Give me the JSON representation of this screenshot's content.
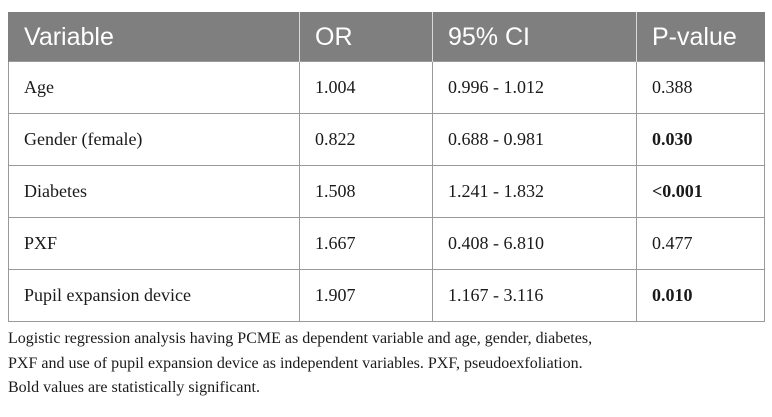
{
  "table": {
    "headers": [
      "Variable",
      "OR",
      "95% CI",
      "P-value"
    ],
    "rows": [
      {
        "variable": "Age",
        "or": "1.004",
        "ci": "0.996 - 1.012",
        "p": "0.388",
        "p_bold": false
      },
      {
        "variable": "Gender (female)",
        "or": "0.822",
        "ci": "0.688 - 0.981",
        "p": "0.030",
        "p_bold": true
      },
      {
        "variable": "Diabetes",
        "or": "1.508",
        "ci": "1.241 - 1.832",
        "p": "<0.001",
        "p_bold": true
      },
      {
        "variable": "PXF",
        "or": "1.667",
        "ci": "0.408 - 6.810",
        "p": "0.477",
        "p_bold": false
      },
      {
        "variable": "Pupil expansion device",
        "or": "1.907",
        "ci": "1.167 - 3.116",
        "p": "0.010",
        "p_bold": true
      }
    ]
  },
  "footnote": {
    "line1": "Logistic regression analysis having PCME as dependent variable and age, gender, diabetes,",
    "line2": "PXF and use of pupil expansion device as independent variables. PXF, pseudoexfoliation.",
    "line3": "Bold values are statistically significant."
  },
  "colors": {
    "header_bg": "#7f7f7f",
    "header_text": "#ffffff",
    "border": "#9a9a9a"
  }
}
